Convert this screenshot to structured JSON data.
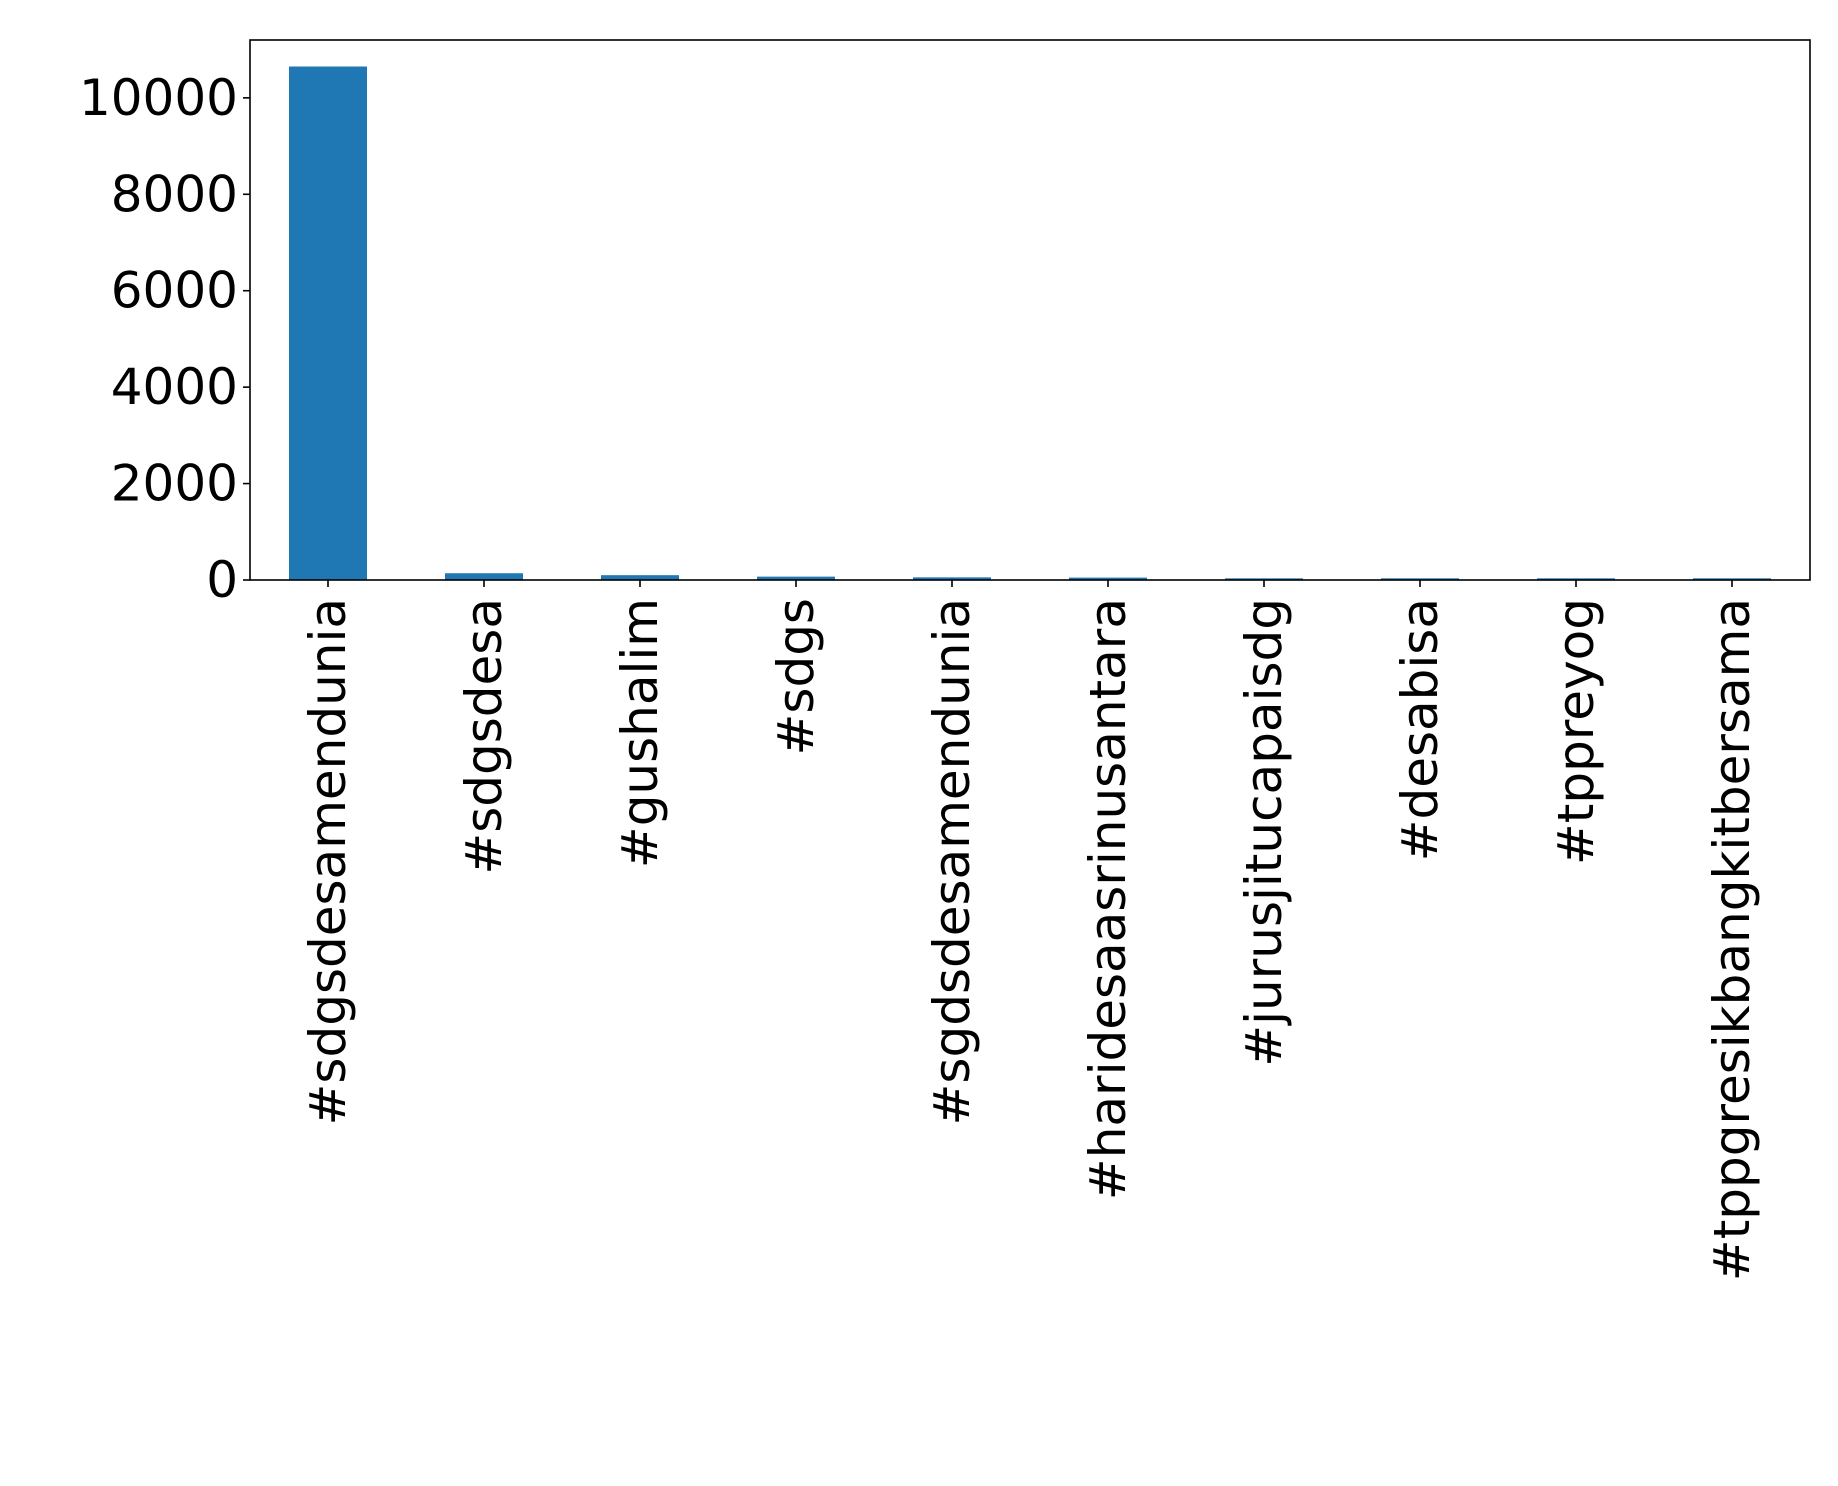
{
  "chart_data": {
    "type": "bar",
    "title": "",
    "xlabel": "",
    "ylabel": "",
    "categories": [
      "#sdgsdesamendunia",
      "#sdgsdesa",
      "#gushalim",
      "#sdgs",
      "#sgdsdesamendunia",
      "#haridesaasrinusantara",
      "#jurusjitucapaisdg",
      "#desabisa",
      "#tppreyog",
      "#tppgresikbangkitbersama"
    ],
    "values": [
      10650,
      140,
      100,
      70,
      55,
      50,
      35,
      35,
      35,
      35
    ],
    "ylim": [
      0,
      11200
    ],
    "yticks": [
      0,
      2000,
      4000,
      6000,
      8000,
      10000
    ],
    "bar_color": "#1f77b4",
    "grid": false,
    "legend": "none"
  }
}
